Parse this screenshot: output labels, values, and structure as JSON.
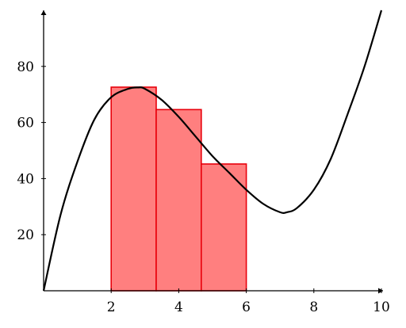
{
  "chart_data": {
    "type": "bar",
    "xlim": [
      0,
      10
    ],
    "ylim": [
      0,
      100
    ],
    "x_ticks": [
      "2",
      "4",
      "6",
      "8",
      "10"
    ],
    "y_ticks": [
      "20",
      "40",
      "60",
      "80"
    ],
    "bars": [
      {
        "x_start": 2.0,
        "x_end": 3.333,
        "value": 72.6
      },
      {
        "x_start": 3.333,
        "x_end": 4.667,
        "value": 64.6
      },
      {
        "x_start": 4.667,
        "x_end": 6.0,
        "value": 45.2
      }
    ],
    "curve": {
      "x": [
        0,
        0.5,
        1,
        1.5,
        2,
        2.5,
        2.8,
        3,
        3.5,
        4,
        4.5,
        5,
        5.5,
        6,
        6.5,
        7,
        7.2,
        7.5,
        8,
        8.5,
        9,
        9.5,
        10
      ],
      "y": [
        0,
        27,
        46,
        61,
        69,
        72,
        72.5,
        72,
        68,
        62,
        55,
        48,
        42,
        36,
        31,
        28,
        28,
        29.5,
        36,
        47,
        63,
        80,
        100
      ]
    },
    "bar_fill": "#ff7f7f",
    "bar_stroke": "#e8000b",
    "curve_color": "#000000",
    "grid": false
  }
}
